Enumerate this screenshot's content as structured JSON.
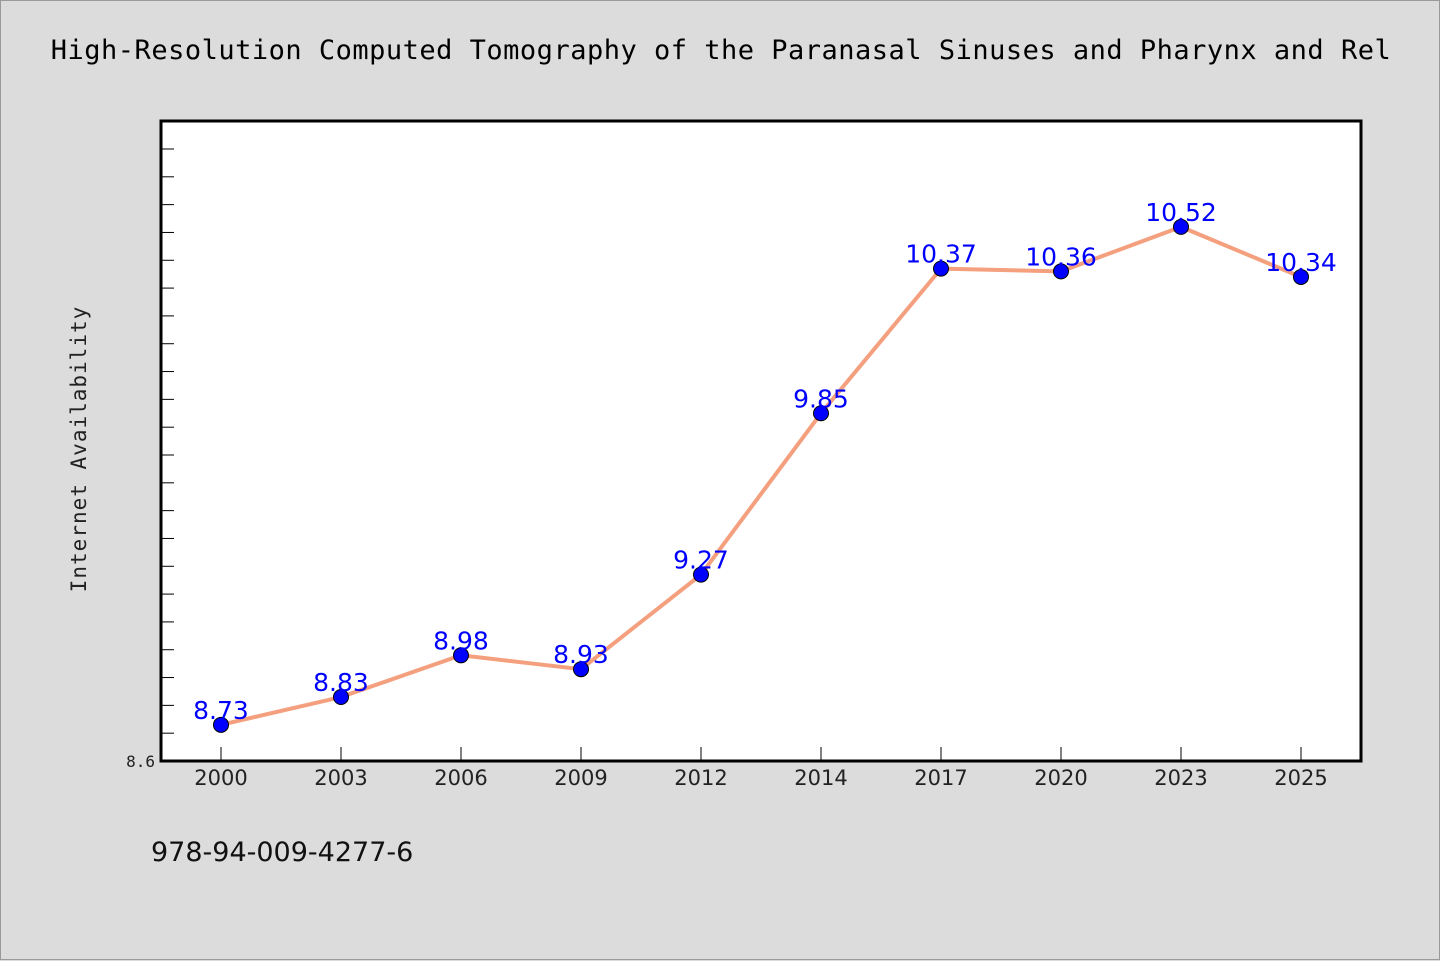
{
  "title": "High-Resolution Computed Tomography of the Paranasal Sinuses and Pharynx and Rel",
  "footer_text": "978-94-009-4277-6",
  "colors": {
    "background": "#dcdcdc",
    "plot_background": "#ffffff",
    "line": "#f4a07e",
    "marker": "#0000ff",
    "data_label": "#0000ff"
  },
  "chart_data": {
    "type": "line",
    "title": "High-Resolution Computed Tomography of the Paranasal Sinuses and Pharynx and Rel",
    "xlabel": "",
    "ylabel": "Internet Availability",
    "categories": [
      "2000",
      "2003",
      "2006",
      "2009",
      "2012",
      "2014",
      "2017",
      "2020",
      "2023",
      "2025"
    ],
    "series": [
      {
        "values": [
          8.73,
          8.83,
          8.98,
          8.93,
          9.27,
          9.85,
          10.37,
          10.36,
          10.52,
          10.34
        ]
      }
    ],
    "data_labels": [
      "8.73",
      "8.83",
      "8.98",
      "8.93",
      "9.27",
      "9.85",
      "10.37",
      "10.36",
      "10.52",
      "10.34"
    ],
    "ylim": [
      8.6,
      10.8
    ],
    "y_tick_labels": [
      "8.6"
    ],
    "y_minor_tick_step": 0.1,
    "grid": false,
    "legend": "none",
    "marker": "circle"
  }
}
